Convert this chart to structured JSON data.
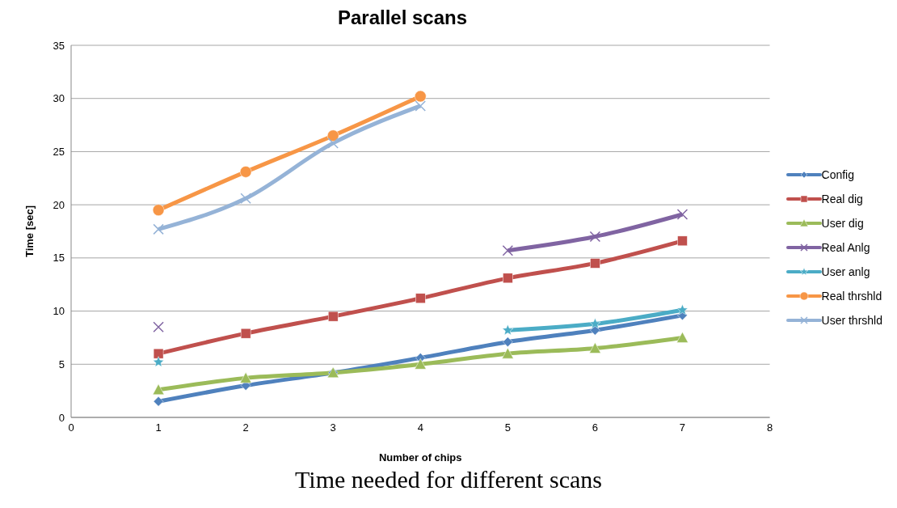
{
  "chart_data": {
    "type": "line",
    "title": "Parallel scans",
    "xlabel": "Number of chips",
    "ylabel": "Time [sec]",
    "annotations": [
      "Time needed for different scans"
    ],
    "x": [
      1,
      2,
      3,
      4,
      5,
      6,
      7
    ],
    "series": [
      {
        "name": "Config",
        "color": "#4f81bd",
        "marker": "diamond",
        "values": [
          1.5,
          3.0,
          4.2,
          5.6,
          7.1,
          8.2,
          9.6
        ]
      },
      {
        "name": "Real dig",
        "color": "#c0504d",
        "marker": "square",
        "values": [
          6.0,
          7.9,
          9.5,
          11.2,
          13.1,
          14.5,
          16.6
        ]
      },
      {
        "name": "User dig",
        "color": "#9bbb59",
        "marker": "triangle",
        "values": [
          2.6,
          3.7,
          4.2,
          5.0,
          6.0,
          6.5,
          7.5
        ]
      },
      {
        "name": "Real Anlg",
        "color": "#8064a2",
        "marker": "cross",
        "values": [
          8.5,
          null,
          null,
          null,
          15.7,
          17.0,
          19.1
        ]
      },
      {
        "name": "User anlg",
        "color": "#4bacc6",
        "marker": "star",
        "values": [
          5.2,
          null,
          null,
          null,
          8.2,
          8.8,
          10.1
        ]
      },
      {
        "name": "Real thrshld",
        "color": "#f79646",
        "marker": "circle",
        "values": [
          19.5,
          23.1,
          26.5,
          30.2,
          null,
          null,
          null
        ]
      },
      {
        "name": "User thrshld",
        "color": "#95b3d7",
        "marker": "cross",
        "values": [
          17.7,
          20.6,
          25.8,
          29.3,
          null,
          null,
          null
        ]
      }
    ],
    "xlim": [
      0,
      8
    ],
    "xticks": [
      0,
      1,
      2,
      3,
      4,
      5,
      6,
      7,
      8
    ],
    "ylim": [
      0,
      35
    ],
    "yticks": [
      0,
      5,
      10,
      15,
      20,
      25,
      30,
      35
    ],
    "grid": "y",
    "legend": "right",
    "line_style": "solid"
  }
}
